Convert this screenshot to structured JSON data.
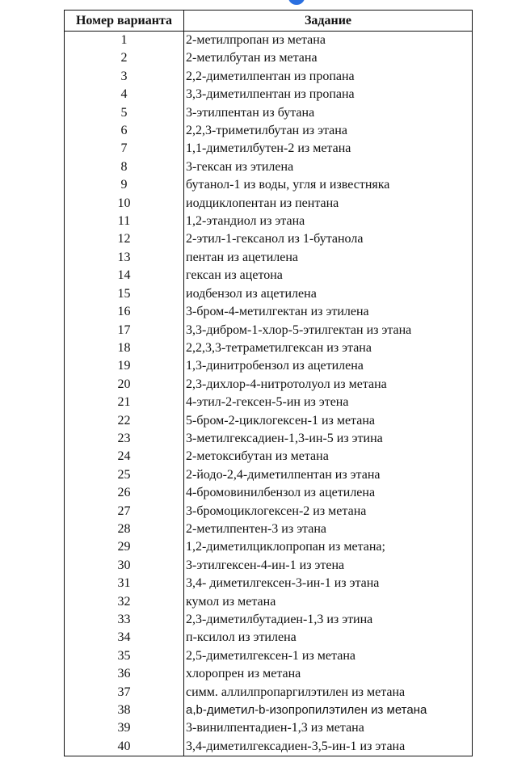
{
  "table": {
    "headers": [
      "Номер варианта",
      "Задание"
    ],
    "rows": [
      [
        "1",
        "2-метилпропан из метана"
      ],
      [
        "2",
        "2-метилбутан из метана"
      ],
      [
        "3",
        "2,2-диметилпентан из пропана"
      ],
      [
        "4",
        "3,3-диметилпентан из пропана"
      ],
      [
        "5",
        "3-этилпентан из бутана"
      ],
      [
        "6",
        "2,2,3-триметилбутан из этана"
      ],
      [
        "7",
        "1,1-диметилбутен-2 из метана"
      ],
      [
        "8",
        "3-гексан из этилена"
      ],
      [
        "9",
        "бутанол-1 из воды, угля и известняка"
      ],
      [
        "10",
        "иодциклопентан из пентана"
      ],
      [
        "11",
        "1,2-этандиол из этана"
      ],
      [
        "12",
        "2-этил-1-гексанол из 1-бутанола"
      ],
      [
        "13",
        "пентан из ацетилена"
      ],
      [
        "14",
        "гексан из ацетона"
      ],
      [
        "15",
        "иодбензол из ацетилена"
      ],
      [
        "16",
        "3-бром-4-метилгектан из этилена"
      ],
      [
        "17",
        "3,3-дибром-1-хлор-5-этилгектан из этана"
      ],
      [
        "18",
        "2,2,3,3-тетраметилгексан из этана"
      ],
      [
        "19",
        "1,3-динитробензол из ацетилена"
      ],
      [
        "20",
        "2,3-дихлор-4-нитротолуол из метана"
      ],
      [
        "21",
        "4-этил-2-гексен-5-ин из этена"
      ],
      [
        "22",
        "5-бром-2-циклогексен-1 из метана"
      ],
      [
        "23",
        "3-метилгексадиен-1,3-ин-5 из этина"
      ],
      [
        "24",
        "2-метоксибутан из метана"
      ],
      [
        "25",
        "2-йодо-2,4-диметилпентан из этана"
      ],
      [
        "26",
        "4-бромовинилбензол  из ацетилена"
      ],
      [
        "27",
        "3-бромоциклогексен-2 из метана"
      ],
      [
        "28",
        "2-метилпентен-3 из этана"
      ],
      [
        "29",
        "1,2-диметилциклопропан из метана;"
      ],
      [
        "30",
        "3-этилгексен-4-ин-1 из этена"
      ],
      [
        "31",
        "3,4- диметилгексен-3-ин-1 из этана"
      ],
      [
        "32",
        "кумол из метана"
      ],
      [
        "33",
        "2,3-диметилбутадиен-1,3 из этина"
      ],
      [
        "34",
        "п-ксилол из этилена"
      ],
      [
        "35",
        "2,5-диметилгексен-1 из метана"
      ],
      [
        "36",
        "хлоропрен из метана"
      ],
      [
        "37",
        "симм. аллилпропаргилэтилен из метана"
      ],
      [
        "38",
        "a,b-диметил-b-изопропилэтилен из метана"
      ],
      [
        "39",
        "3-винилпентадиен-1,3 из метана"
      ],
      [
        "40",
        "3,4-диметилгексадиен-3,5-ин-1 из этана"
      ]
    ]
  }
}
